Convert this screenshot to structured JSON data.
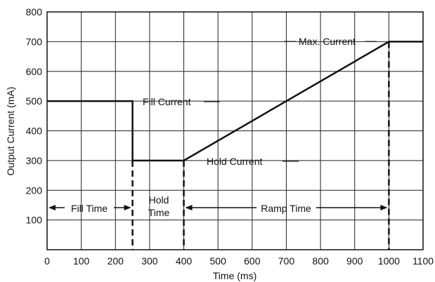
{
  "chart_data": {
    "type": "line",
    "title": "",
    "xlabel": "Time (ms)",
    "ylabel": "Output Current (mA)",
    "xlim": [
      0,
      1100
    ],
    "ylim": [
      0,
      800
    ],
    "grid": true,
    "x_ticks": [
      0,
      100,
      200,
      300,
      400,
      500,
      600,
      700,
      800,
      900,
      1000,
      1100
    ],
    "y_ticks": [
      100,
      200,
      300,
      400,
      500,
      600,
      700,
      800
    ],
    "series": [
      {
        "x": [
          0,
          250,
          250,
          400,
          1000,
          1100
        ],
        "y": [
          500,
          500,
          300,
          300,
          700,
          700
        ]
      }
    ],
    "phase_markers_ms": [
      250,
      400,
      1000
    ],
    "annotations": {
      "fill_current": "Fill Current",
      "hold_current": "Hold Current",
      "max_current": "Max. Current",
      "fill_time": "Fill Time",
      "hold_time_line1": "Hold",
      "hold_time_line2": "Time",
      "ramp_time": "Ramp Time"
    }
  }
}
